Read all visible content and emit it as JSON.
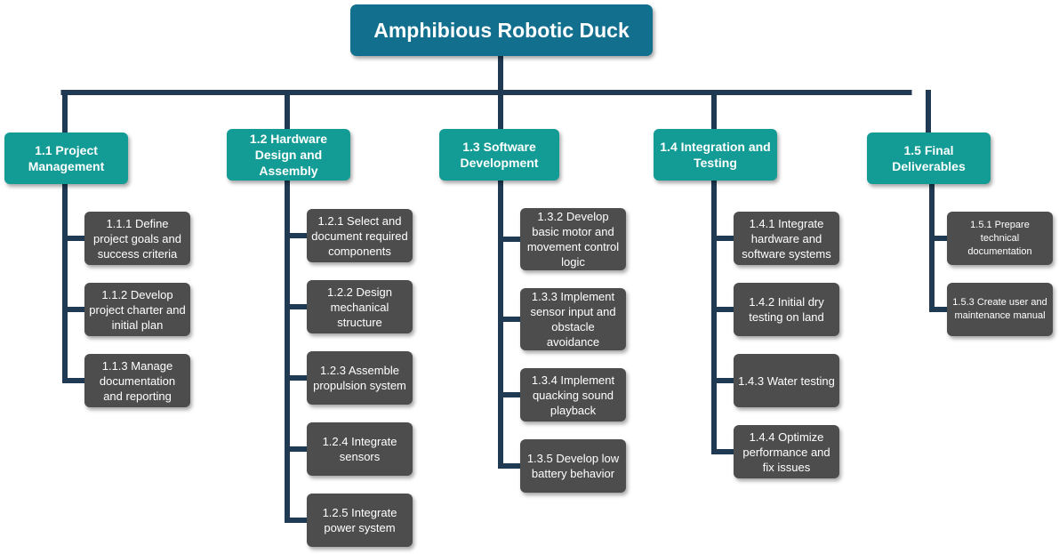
{
  "title": "Amphibious Robotic Duck",
  "colors": {
    "root_fill": "#126f8d",
    "level1_fill": "#139b95",
    "level2_fill": "#4d4d4d",
    "connector": "#1f3a52"
  },
  "branches": [
    {
      "label": "1.1 Project\nManagement",
      "children": [
        "1.1.1 Define\nproject goals and\nsuccess criteria",
        "1.1.2 Develop\nproject charter and\ninitial plan",
        "1.1.3 Manage\ndocumentation\nand reporting"
      ]
    },
    {
      "label": "1.2 Hardware\nDesign and\nAssembly",
      "children": [
        "1.2.1 Select and\ndocument required\ncomponents",
        "1.2.2 Design\nmechanical\nstructure",
        "1.2.3 Assemble\npropulsion system",
        "1.2.4 Integrate\nsensors",
        "1.2.5 Integrate\npower system"
      ]
    },
    {
      "label": "1.3 Software\nDevelopment",
      "children": [
        "1.3.2 Develop\nbasic motor and\nmovement control\nlogic",
        "1.3.3 Implement\nsensor input and\nobstacle\navoidance",
        "1.3.4 Implement\nquacking sound\nplayback",
        "1.3.5 Develop low\nbattery behavior"
      ]
    },
    {
      "label": "1.4 Integration and\nTesting",
      "children": [
        "1.4.1 Integrate\nhardware and\nsoftware systems",
        "1.4.2 Initial dry\ntesting on land",
        "1.4.3 Water testing",
        "1.4.4 Optimize\nperformance and\nfix issues"
      ]
    },
    {
      "label": "1.5 Final\nDeliverables",
      "children": [
        "1.5.1 Prepare\ntechnical\ndocumentation",
        "1.5.3 Create user and\nmaintenance manual"
      ]
    }
  ]
}
